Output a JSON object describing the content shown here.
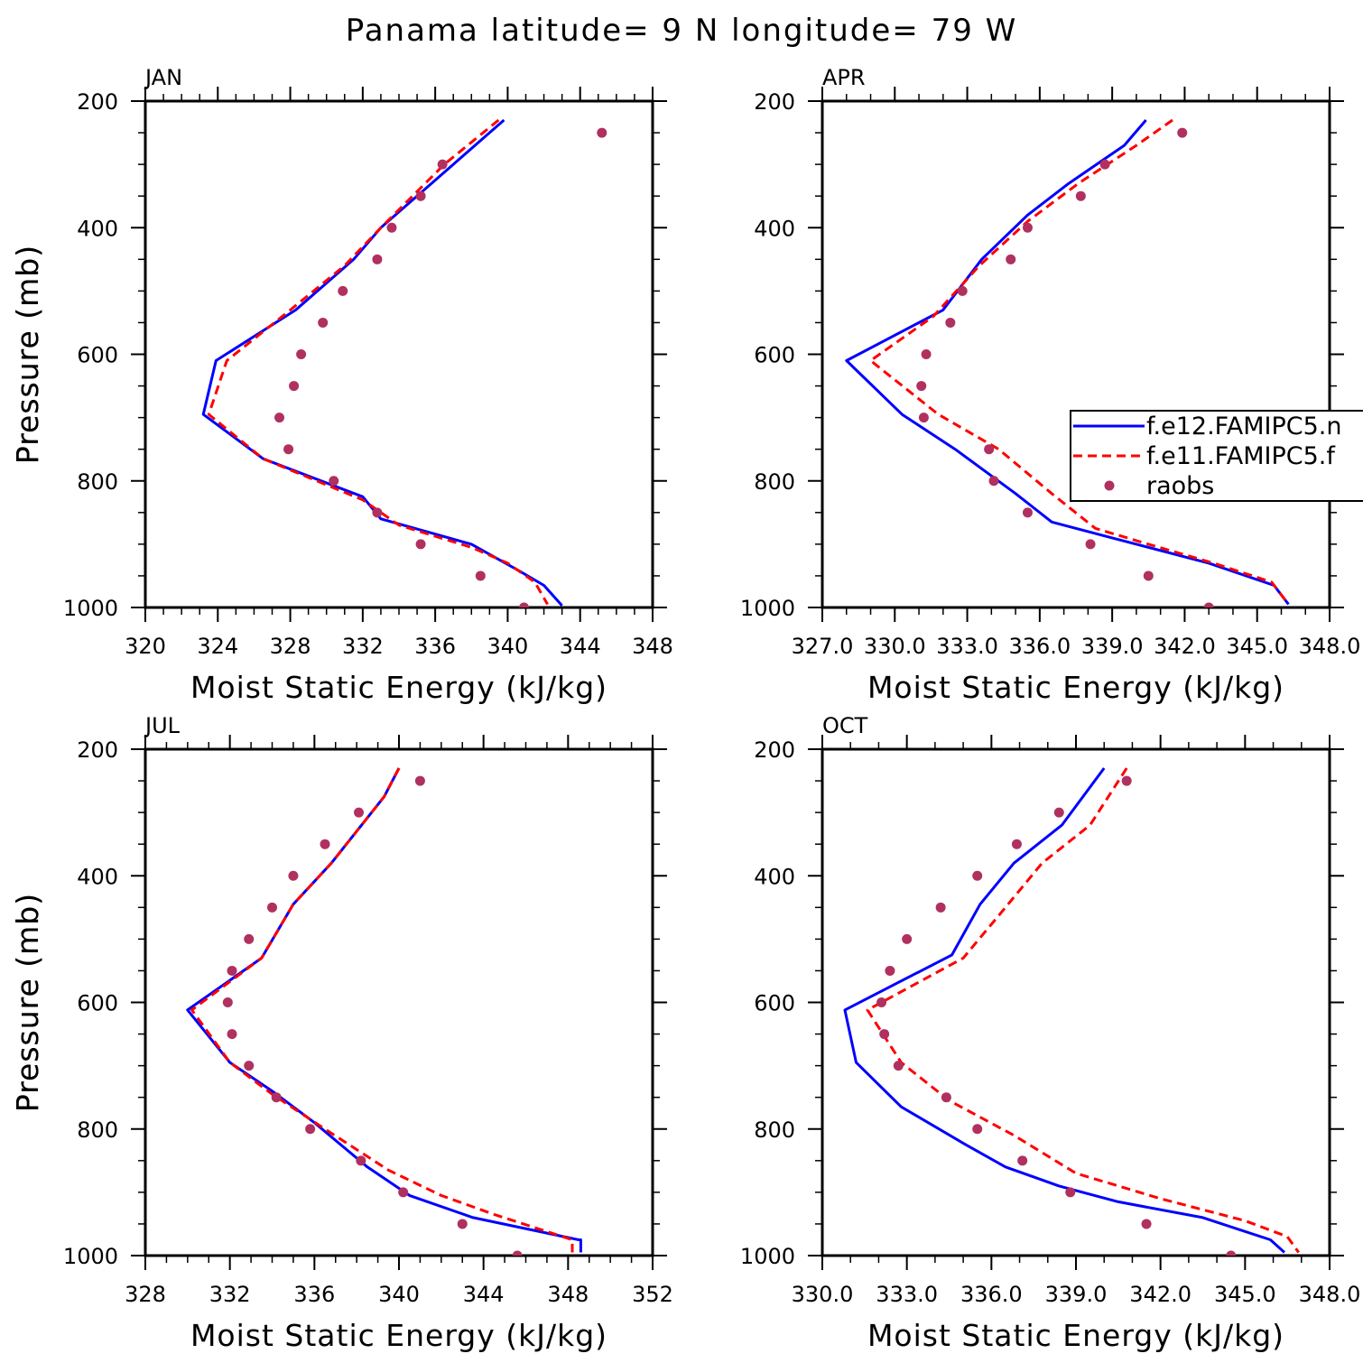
{
  "title": "Panama  latitude= 9 N longitude= 79 W",
  "colors": {
    "model_e12": "#0000ff",
    "model_e11": "#ff0000",
    "raobs": "#b03060",
    "axes": "#000000"
  },
  "legend": {
    "panel": 1,
    "entries": [
      {
        "label": "f.e12.FAMIPC5.n",
        "style": "solid",
        "color": "#0000ff"
      },
      {
        "label": "f.e11.FAMIPC5.f",
        "style": "dashed",
        "color": "#ff0000"
      },
      {
        "label": "raobs",
        "style": "dot",
        "color": "#b03060"
      }
    ]
  },
  "chart_data": [
    {
      "type": "line",
      "panel_title": "JAN",
      "xlabel": "Moist Static Energy (kJ/kg)",
      "ylabel": "Pressure (mb)",
      "xlim": [
        320,
        348
      ],
      "ylim": [
        200,
        1000
      ],
      "xticks": [
        "320",
        "324",
        "328",
        "332",
        "336",
        "340",
        "344",
        "348"
      ],
      "xtick_values": [
        320,
        324,
        328,
        332,
        336,
        340,
        344,
        348
      ],
      "yticks": [
        "200",
        "400",
        "600",
        "800",
        "1000"
      ],
      "ytick_values": [
        200,
        400,
        600,
        800,
        1000
      ],
      "x_minor": 1,
      "y_minor": 50,
      "series": [
        {
          "name": "f.e12.FAMIPC5.n",
          "style": "solid",
          "x": [
            339.8,
            337.0,
            333.0,
            331.5,
            328.3,
            323.9,
            323.2,
            326.5,
            332.0,
            333.0,
            338.0,
            340.5,
            342.0,
            343.0
          ],
          "y": [
            230,
            300,
            400,
            450,
            530,
            610,
            695,
            765,
            825,
            860,
            900,
            940,
            965,
            997
          ]
        },
        {
          "name": "f.e11.FAMIPC5.f",
          "style": "dashed",
          "x": [
            339.5,
            336.5,
            333.0,
            331.0,
            328.0,
            324.5,
            323.5,
            326.5,
            332.0,
            334.0,
            338.0,
            340.0,
            341.5,
            342.2
          ],
          "y": [
            230,
            300,
            400,
            460,
            530,
            610,
            695,
            765,
            830,
            870,
            905,
            930,
            960,
            995
          ]
        },
        {
          "name": "raobs",
          "style": "dot",
          "x": [
            345.2,
            336.4,
            335.2,
            333.6,
            332.8,
            330.9,
            329.8,
            328.6,
            328.2,
            327.4,
            327.9,
            330.4,
            332.8,
            335.2,
            338.5,
            340.9
          ],
          "y": [
            250,
            300,
            350,
            400,
            450,
            500,
            550,
            600,
            650,
            700,
            750,
            800,
            850,
            900,
            950,
            1000
          ]
        }
      ]
    },
    {
      "type": "line",
      "panel_title": "APR",
      "xlabel": "Moist Static Energy (kJ/kg)",
      "ylabel": "Pressure (mb)",
      "xlim": [
        327.0,
        348.0
      ],
      "ylim": [
        200,
        1000
      ],
      "xticks": [
        "327.0",
        "330.0",
        "333.0",
        "336.0",
        "339.0",
        "342.0",
        "345.0",
        "348.0"
      ],
      "xtick_values": [
        327,
        330,
        333,
        336,
        339,
        342,
        345,
        348
      ],
      "yticks": [
        "200",
        "400",
        "600",
        "800",
        "1000"
      ],
      "ytick_values": [
        200,
        400,
        600,
        800,
        1000
      ],
      "x_minor": 1,
      "y_minor": 50,
      "series": [
        {
          "name": "f.e12.FAMIPC5.n",
          "style": "solid",
          "x": [
            340.4,
            339.5,
            337.2,
            335.5,
            333.6,
            332.0,
            328.0,
            330.3,
            332.5,
            335.0,
            336.5,
            339.0,
            343.0,
            345.7,
            346.3
          ],
          "y": [
            230,
            270,
            330,
            380,
            450,
            530,
            610,
            695,
            750,
            820,
            865,
            890,
            930,
            965,
            995
          ]
        },
        {
          "name": "f.e11.FAMIPC5.f",
          "style": "dashed",
          "x": [
            341.5,
            340.0,
            337.6,
            335.5,
            333.5,
            331.6,
            329.0,
            331.8,
            334.3,
            336.5,
            338.3,
            340.5,
            343.2,
            345.6,
            346.3
          ],
          "y": [
            230,
            270,
            330,
            390,
            460,
            540,
            610,
            695,
            750,
            820,
            875,
            900,
            930,
            960,
            995
          ]
        },
        {
          "name": "raobs",
          "style": "dot",
          "x": [
            341.9,
            338.7,
            337.7,
            335.5,
            334.8,
            332.8,
            332.3,
            331.3,
            331.1,
            331.2,
            333.9,
            334.1,
            335.5,
            338.1,
            340.5,
            343.0
          ],
          "y": [
            250,
            300,
            350,
            400,
            450,
            500,
            550,
            600,
            650,
            700,
            750,
            800,
            850,
            900,
            950,
            1000
          ]
        }
      ]
    },
    {
      "type": "line",
      "panel_title": "JUL",
      "xlabel": "Moist Static Energy (kJ/kg)",
      "ylabel": "Pressure (mb)",
      "xlim": [
        328,
        352
      ],
      "ylim": [
        200,
        1000
      ],
      "xticks": [
        "328",
        "332",
        "336",
        "340",
        "344",
        "348",
        "352"
      ],
      "xtick_values": [
        328,
        332,
        336,
        340,
        344,
        348,
        352
      ],
      "yticks": [
        "200",
        "400",
        "600",
        "800",
        "1000"
      ],
      "ytick_values": [
        200,
        400,
        600,
        800,
        1000
      ],
      "x_minor": 1,
      "y_minor": 50,
      "series": [
        {
          "name": "f.e12.FAMIPC5.n",
          "style": "solid",
          "x": [
            340.0,
            339.3,
            336.8,
            335.0,
            333.5,
            330.0,
            332.0,
            334.0,
            336.0,
            338.5,
            340.5,
            343.5,
            348.5,
            348.6,
            348.6
          ],
          "y": [
            230,
            275,
            380,
            445,
            530,
            612,
            695,
            740,
            790,
            860,
            905,
            940,
            975,
            975,
            995
          ]
        },
        {
          "name": "f.e11.FAMIPC5.f",
          "style": "dashed",
          "x": [
            340.0,
            339.3,
            336.8,
            335.0,
            333.5,
            330.2,
            332.0,
            334.0,
            336.5,
            339.5,
            342.0,
            344.5,
            348.2,
            348.2
          ],
          "y": [
            230,
            275,
            380,
            445,
            530,
            612,
            695,
            745,
            800,
            865,
            905,
            935,
            975,
            995
          ]
        },
        {
          "name": "raobs",
          "style": "dot",
          "x": [
            341.0,
            338.1,
            336.5,
            335.0,
            334.0,
            332.9,
            332.1,
            331.9,
            332.1,
            332.9,
            334.2,
            335.8,
            338.2,
            340.2,
            343.0,
            345.6
          ],
          "y": [
            250,
            300,
            350,
            400,
            450,
            500,
            550,
            600,
            650,
            700,
            750,
            800,
            850,
            900,
            950,
            1000
          ]
        }
      ]
    },
    {
      "type": "line",
      "panel_title": "OCT",
      "xlabel": "Moist Static Energy (kJ/kg)",
      "ylabel": "Pressure (mb)",
      "xlim": [
        330.0,
        348.0
      ],
      "ylim": [
        200,
        1000
      ],
      "xticks": [
        "330.0",
        "333.0",
        "336.0",
        "339.0",
        "342.0",
        "345.0",
        "348.0"
      ],
      "xtick_values": [
        330,
        333,
        336,
        339,
        342,
        345,
        348
      ],
      "yticks": [
        "200",
        "400",
        "600",
        "800",
        "1000"
      ],
      "ytick_values": [
        200,
        400,
        600,
        800,
        1000
      ],
      "x_minor": 1,
      "y_minor": 50,
      "series": [
        {
          "name": "f.e12.FAMIPC5.n",
          "style": "solid",
          "x": [
            340.0,
            338.5,
            336.8,
            335.6,
            334.6,
            330.8,
            331.2,
            332.8,
            335.1,
            336.5,
            338.4,
            340.5,
            343.5,
            345.9,
            346.4
          ],
          "y": [
            230,
            320,
            380,
            445,
            525,
            612,
            695,
            765,
            825,
            860,
            890,
            915,
            940,
            975,
            995
          ]
        },
        {
          "name": "f.e11.FAMIPC5.f",
          "style": "dashed",
          "x": [
            340.8,
            339.5,
            337.8,
            336.5,
            335.0,
            331.6,
            332.8,
            334.5,
            336.8,
            339.0,
            342.0,
            345.0,
            346.5,
            346.9
          ],
          "y": [
            230,
            320,
            380,
            450,
            530,
            612,
            695,
            755,
            810,
            870,
            910,
            945,
            970,
            995
          ]
        },
        {
          "name": "raobs",
          "style": "dot",
          "x": [
            340.8,
            338.4,
            336.9,
            335.5,
            334.2,
            333.0,
            332.4,
            332.1,
            332.2,
            332.7,
            334.4,
            335.5,
            337.1,
            338.8,
            341.5,
            344.5
          ],
          "y": [
            250,
            300,
            350,
            400,
            450,
            500,
            550,
            600,
            650,
            700,
            750,
            800,
            850,
            900,
            950,
            1000
          ]
        }
      ]
    }
  ]
}
